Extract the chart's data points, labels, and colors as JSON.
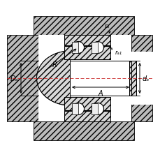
{
  "bg_color": "#ffffff",
  "hatch_color": "#000000",
  "line_color": "#000000",
  "gray_fill": "#d0d0d0",
  "light_gray": "#e8e8e8",
  "white": "#ffffff",
  "dim_color": "#000000",
  "label_ra": "rₐ",
  "label_ra1": "rₐ₁",
  "label_R": "R",
  "label_A": "A",
  "label_Da": "Dₐ",
  "label_da": "dₐ",
  "figsize": [
    2.3,
    2.26
  ],
  "dpi": 100
}
